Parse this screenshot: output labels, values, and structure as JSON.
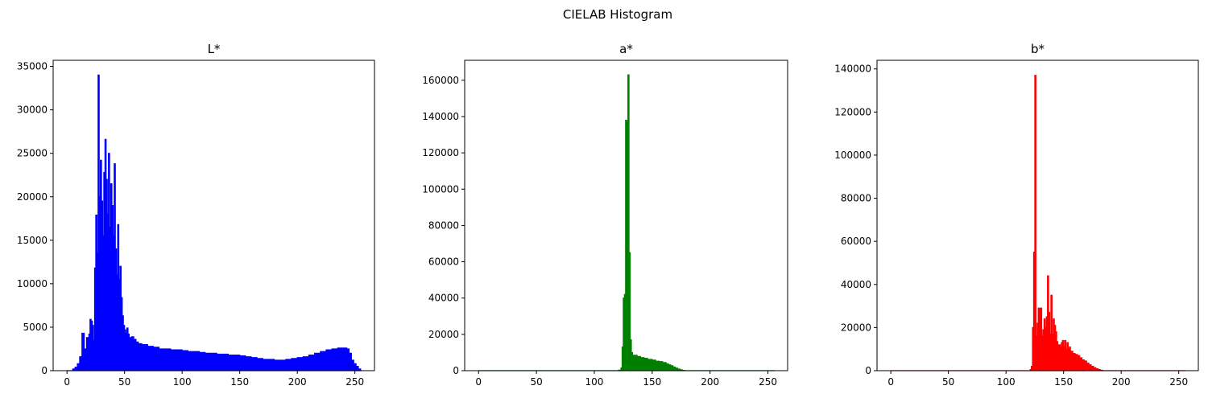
{
  "suptitle": "CIELAB Histogram",
  "chart_data": [
    {
      "type": "bar",
      "title": "L*",
      "color": "#0000ff",
      "xlim": [
        -12,
        267
      ],
      "ylim": [
        0,
        35700
      ],
      "xticks": [
        0,
        50,
        100,
        150,
        200,
        250
      ],
      "yticks": [
        0,
        5000,
        10000,
        15000,
        20000,
        25000,
        30000,
        35000
      ],
      "points": [
        [
          0,
          0
        ],
        [
          3,
          0
        ],
        [
          5,
          200
        ],
        [
          7,
          400
        ],
        [
          9,
          800
        ],
        [
          11,
          1600
        ],
        [
          13,
          4300
        ],
        [
          15,
          2500
        ],
        [
          17,
          3800
        ],
        [
          19,
          4200
        ],
        [
          20,
          5900
        ],
        [
          21,
          5700
        ],
        [
          22,
          5200
        ],
        [
          23,
          3500
        ],
        [
          24,
          11800
        ],
        [
          25,
          17900
        ],
        [
          26,
          13500
        ],
        [
          27,
          34000
        ],
        [
          28,
          20000
        ],
        [
          29,
          24200
        ],
        [
          30,
          19500
        ],
        [
          31,
          15500
        ],
        [
          32,
          22800
        ],
        [
          33,
          26600
        ],
        [
          34,
          22000
        ],
        [
          35,
          18000
        ],
        [
          36,
          25000
        ],
        [
          37,
          16500
        ],
        [
          38,
          21500
        ],
        [
          39,
          19000
        ],
        [
          40,
          15500
        ],
        [
          41,
          23800
        ],
        [
          42,
          14000
        ],
        [
          43,
          11000
        ],
        [
          44,
          16800
        ],
        [
          45,
          10500
        ],
        [
          46,
          12000
        ],
        [
          47,
          8400
        ],
        [
          48,
          6300
        ],
        [
          49,
          5200
        ],
        [
          50,
          4700
        ],
        [
          51,
          4300
        ],
        [
          52,
          4900
        ],
        [
          53,
          4200
        ],
        [
          54,
          3800
        ],
        [
          56,
          3900
        ],
        [
          58,
          3600
        ],
        [
          60,
          3300
        ],
        [
          62,
          3100
        ],
        [
          65,
          3000
        ],
        [
          70,
          2800
        ],
        [
          75,
          2700
        ],
        [
          80,
          2500
        ],
        [
          85,
          2500
        ],
        [
          90,
          2400
        ],
        [
          95,
          2400
        ],
        [
          100,
          2300
        ],
        [
          105,
          2200
        ],
        [
          110,
          2200
        ],
        [
          115,
          2100
        ],
        [
          120,
          2000
        ],
        [
          125,
          2000
        ],
        [
          130,
          1900
        ],
        [
          135,
          1900
        ],
        [
          140,
          1800
        ],
        [
          145,
          1800
        ],
        [
          150,
          1700
        ],
        [
          155,
          1600
        ],
        [
          160,
          1500
        ],
        [
          165,
          1400
        ],
        [
          170,
          1300
        ],
        [
          175,
          1300
        ],
        [
          180,
          1200
        ],
        [
          185,
          1200
        ],
        [
          190,
          1300
        ],
        [
          195,
          1400
        ],
        [
          200,
          1500
        ],
        [
          205,
          1600
        ],
        [
          210,
          1800
        ],
        [
          215,
          2000
        ],
        [
          220,
          2200
        ],
        [
          225,
          2400
        ],
        [
          230,
          2500
        ],
        [
          235,
          2600
        ],
        [
          238,
          2600
        ],
        [
          240,
          2600
        ],
        [
          243,
          2500
        ],
        [
          245,
          2000
        ],
        [
          247,
          1200
        ],
        [
          249,
          800
        ],
        [
          251,
          500
        ],
        [
          253,
          200
        ],
        [
          255,
          0
        ]
      ]
    },
    {
      "type": "bar",
      "title": "a*",
      "color": "#008000",
      "xlim": [
        -12,
        267
      ],
      "ylim": [
        0,
        171000
      ],
      "xticks": [
        0,
        50,
        100,
        150,
        200,
        250
      ],
      "yticks": [
        0,
        20000,
        40000,
        60000,
        80000,
        100000,
        120000,
        140000,
        160000
      ],
      "points": [
        [
          0,
          0
        ],
        [
          100,
          0
        ],
        [
          118,
          0
        ],
        [
          121,
          300
        ],
        [
          123,
          1500
        ],
        [
          124,
          13000
        ],
        [
          125,
          40000
        ],
        [
          126,
          42000
        ],
        [
          127,
          138000
        ],
        [
          128,
          137000
        ],
        [
          129,
          163000
        ],
        [
          130,
          65000
        ],
        [
          131,
          17000
        ],
        [
          132,
          10000
        ],
        [
          133,
          8500
        ],
        [
          135,
          8500
        ],
        [
          137,
          7800
        ],
        [
          140,
          7200
        ],
        [
          143,
          6800
        ],
        [
          146,
          6200
        ],
        [
          150,
          5800
        ],
        [
          153,
          5200
        ],
        [
          156,
          5000
        ],
        [
          159,
          4500
        ],
        [
          162,
          3800
        ],
        [
          164,
          3200
        ],
        [
          166,
          2700
        ],
        [
          168,
          2000
        ],
        [
          170,
          1400
        ],
        [
          172,
          900
        ],
        [
          174,
          500
        ],
        [
          176,
          200
        ],
        [
          178,
          0
        ],
        [
          255,
          0
        ]
      ]
    },
    {
      "type": "bar",
      "title": "b*",
      "color": "#ff0000",
      "xlim": [
        -12,
        267
      ],
      "ylim": [
        0,
        144000
      ],
      "xticks": [
        0,
        50,
        100,
        150,
        200,
        250
      ],
      "yticks": [
        0,
        20000,
        40000,
        60000,
        80000,
        100000,
        120000,
        140000
      ],
      "points": [
        [
          0,
          0
        ],
        [
          118,
          0
        ],
        [
          121,
          500
        ],
        [
          122,
          2000
        ],
        [
          123,
          20000
        ],
        [
          124,
          55000
        ],
        [
          125,
          137000
        ],
        [
          126,
          16000
        ],
        [
          127,
          22000
        ],
        [
          128,
          29000
        ],
        [
          129,
          29000
        ],
        [
          130,
          29000
        ],
        [
          131,
          16000
        ],
        [
          132,
          19000
        ],
        [
          133,
          24000
        ],
        [
          134,
          20000
        ],
        [
          135,
          25000
        ],
        [
          136,
          44000
        ],
        [
          137,
          27000
        ],
        [
          138,
          17000
        ],
        [
          139,
          35000
        ],
        [
          140,
          17000
        ],
        [
          141,
          24000
        ],
        [
          142,
          21000
        ],
        [
          143,
          18000
        ],
        [
          144,
          13500
        ],
        [
          145,
          12000
        ],
        [
          146,
          12000
        ],
        [
          147,
          11000
        ],
        [
          148,
          13000
        ],
        [
          149,
          14000
        ],
        [
          150,
          11000
        ],
        [
          151,
          14000
        ],
        [
          152,
          10000
        ],
        [
          153,
          13000
        ],
        [
          154,
          10000
        ],
        [
          155,
          11000
        ],
        [
          156,
          9000
        ],
        [
          158,
          8000
        ],
        [
          160,
          7500
        ],
        [
          162,
          7000
        ],
        [
          164,
          6000
        ],
        [
          166,
          5000
        ],
        [
          168,
          4500
        ],
        [
          170,
          3500
        ],
        [
          172,
          2700
        ],
        [
          174,
          2000
        ],
        [
          176,
          1400
        ],
        [
          178,
          900
        ],
        [
          180,
          500
        ],
        [
          182,
          200
        ],
        [
          184,
          0
        ],
        [
          255,
          0
        ]
      ]
    }
  ]
}
